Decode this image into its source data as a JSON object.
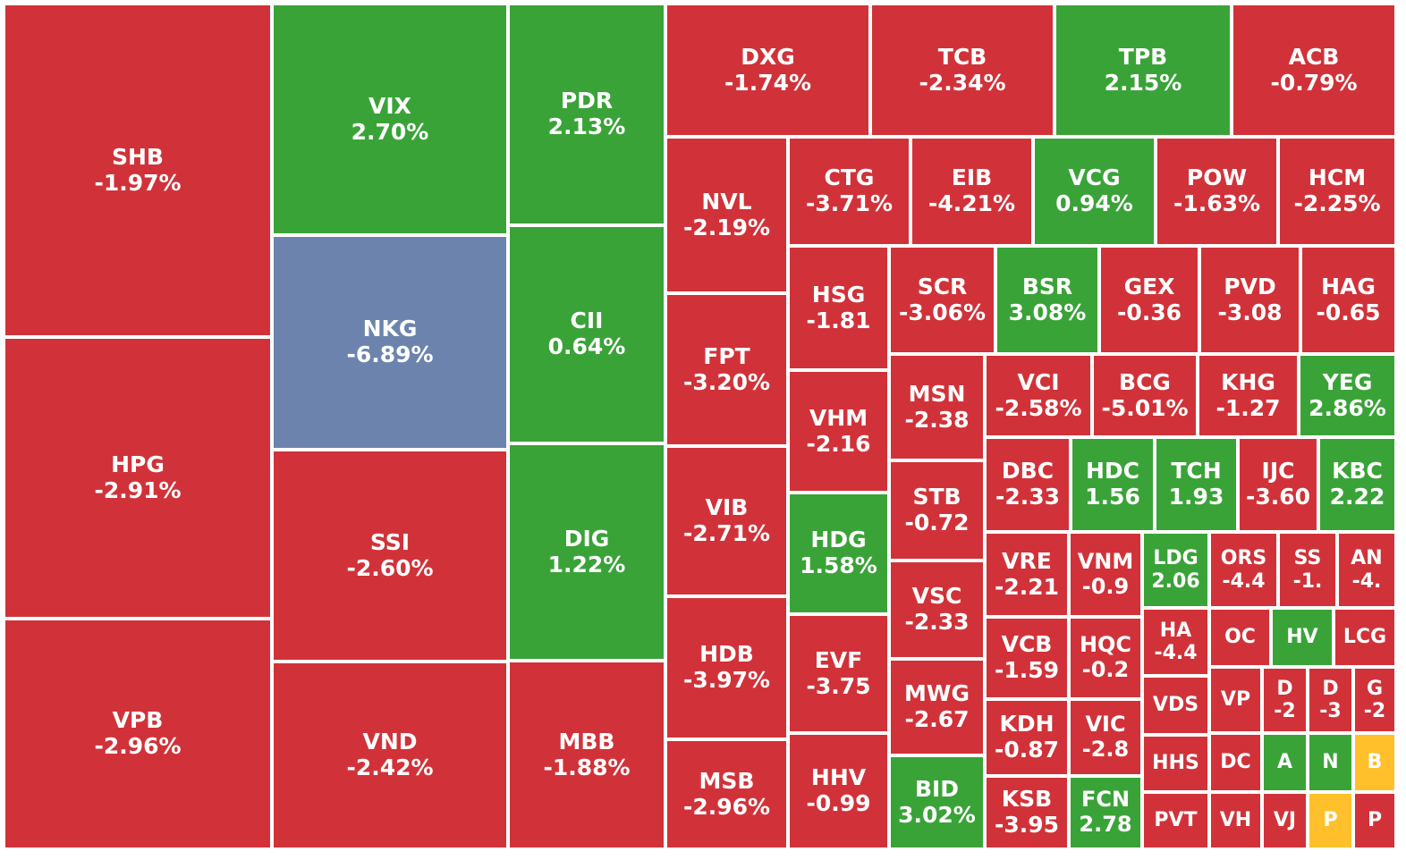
{
  "colors": {
    "down": "#D13239",
    "up": "#3AA338",
    "floor": "#6C84AD",
    "ceiling": "#FFC02B",
    "border": "#FFFFFF",
    "text": "#FFFFFF"
  },
  "chart_data": {
    "type": "heatmap",
    "title": "",
    "tiles": [
      {
        "ticker": "SHB",
        "change": "-1.97%",
        "status": "down"
      },
      {
        "ticker": "HPG",
        "change": "-2.91%",
        "status": "down"
      },
      {
        "ticker": "VPB",
        "change": "-2.96%",
        "status": "down"
      },
      {
        "ticker": "VIX",
        "change": "2.70%",
        "status": "up"
      },
      {
        "ticker": "NKG",
        "change": "-6.89%",
        "status": "floor"
      },
      {
        "ticker": "SSI",
        "change": "-2.60%",
        "status": "down"
      },
      {
        "ticker": "VND",
        "change": "-2.42%",
        "status": "down"
      },
      {
        "ticker": "PDR",
        "change": "2.13%",
        "status": "up"
      },
      {
        "ticker": "CII",
        "change": "0.64%",
        "status": "up"
      },
      {
        "ticker": "DIG",
        "change": "1.22%",
        "status": "up"
      },
      {
        "ticker": "MBB",
        "change": "-1.88%",
        "status": "down"
      },
      {
        "ticker": "DXG",
        "change": "-1.74%",
        "status": "down"
      },
      {
        "ticker": "TCB",
        "change": "-2.34%",
        "status": "down"
      },
      {
        "ticker": "TPB",
        "change": "2.15%",
        "status": "up"
      },
      {
        "ticker": "ACB",
        "change": "-0.79%",
        "status": "down"
      },
      {
        "ticker": "NVL",
        "change": "-2.19%",
        "status": "down"
      },
      {
        "ticker": "FPT",
        "change": "-3.20%",
        "status": "down"
      },
      {
        "ticker": "VIB",
        "change": "-2.71%",
        "status": "down"
      },
      {
        "ticker": "HDB",
        "change": "-3.97%",
        "status": "down"
      },
      {
        "ticker": "MSB",
        "change": "-2.96%",
        "status": "down"
      },
      {
        "ticker": "CTG",
        "change": "-3.71%",
        "status": "down"
      },
      {
        "ticker": "EIB",
        "change": "-4.21%",
        "status": "down"
      },
      {
        "ticker": "VCG",
        "change": "0.94%",
        "status": "up"
      },
      {
        "ticker": "POW",
        "change": "-1.63%",
        "status": "down"
      },
      {
        "ticker": "HCM",
        "change": "-2.25%",
        "status": "down"
      },
      {
        "ticker": "HSG",
        "change": "-1.81",
        "status": "down"
      },
      {
        "ticker": "VHM",
        "change": "-2.16",
        "status": "down"
      },
      {
        "ticker": "HDG",
        "change": "1.58%",
        "status": "up"
      },
      {
        "ticker": "EVF",
        "change": "-3.75",
        "status": "down"
      },
      {
        "ticker": "HHV",
        "change": "-0.99",
        "status": "down"
      },
      {
        "ticker": "SCR",
        "change": "-3.06%",
        "status": "down"
      },
      {
        "ticker": "BSR",
        "change": "3.08%",
        "status": "up"
      },
      {
        "ticker": "GEX",
        "change": "-0.36",
        "status": "down"
      },
      {
        "ticker": "PVD",
        "change": "-3.08",
        "status": "down"
      },
      {
        "ticker": "HAG",
        "change": "-0.65",
        "status": "down"
      },
      {
        "ticker": "MSN",
        "change": "-2.38",
        "status": "down"
      },
      {
        "ticker": "STB",
        "change": "-0.72",
        "status": "down"
      },
      {
        "ticker": "VSC",
        "change": "-2.33",
        "status": "down"
      },
      {
        "ticker": "MWG",
        "change": "-2.67",
        "status": "down"
      },
      {
        "ticker": "BID",
        "change": "3.02%",
        "status": "up"
      },
      {
        "ticker": "VCI",
        "change": "-2.58%",
        "status": "down"
      },
      {
        "ticker": "BCG",
        "change": "-5.01%",
        "status": "down"
      },
      {
        "ticker": "KHG",
        "change": "-1.27",
        "status": "down"
      },
      {
        "ticker": "YEG",
        "change": "2.86%",
        "status": "up"
      },
      {
        "ticker": "DBC",
        "change": "-2.33",
        "status": "down"
      },
      {
        "ticker": "HDC",
        "change": "1.56",
        "status": "up"
      },
      {
        "ticker": "TCH",
        "change": "1.93",
        "status": "up"
      },
      {
        "ticker": "IJC",
        "change": "-3.60",
        "status": "down"
      },
      {
        "ticker": "KBC",
        "change": "2.22",
        "status": "up"
      },
      {
        "ticker": "VRE",
        "change": "-2.21",
        "status": "down"
      },
      {
        "ticker": "VNM",
        "change": "-0.9",
        "status": "down"
      },
      {
        "ticker": "VCB",
        "change": "-1.59",
        "status": "down"
      },
      {
        "ticker": "HQC",
        "change": "-0.2",
        "status": "down"
      },
      {
        "ticker": "KDH",
        "change": "-0.87",
        "status": "down"
      },
      {
        "ticker": "VIC",
        "change": "-2.8",
        "status": "down"
      },
      {
        "ticker": "KSB",
        "change": "-3.95",
        "status": "down"
      },
      {
        "ticker": "FCN",
        "change": "2.78",
        "status": "up"
      },
      {
        "ticker": "LDG",
        "change": "2.06",
        "status": "up"
      },
      {
        "ticker": "ORS",
        "change": "-4.4",
        "status": "down"
      },
      {
        "ticker": "SS",
        "change": "-1.",
        "status": "down"
      },
      {
        "ticker": "AN",
        "change": "-4.",
        "status": "down"
      },
      {
        "ticker": "HA",
        "change": "-4.4",
        "status": "down"
      },
      {
        "ticker": "OC",
        "change": "",
        "status": "down"
      },
      {
        "ticker": "HV",
        "change": "",
        "status": "up"
      },
      {
        "ticker": "LCG",
        "change": "",
        "status": "down"
      },
      {
        "ticker": "VDS",
        "change": "",
        "status": "down"
      },
      {
        "ticker": "VP",
        "change": "",
        "status": "down"
      },
      {
        "ticker": "D",
        "change": "-2",
        "status": "down"
      },
      {
        "ticker": "D",
        "change": "-3",
        "status": "down"
      },
      {
        "ticker": "G",
        "change": "-2",
        "status": "down"
      },
      {
        "ticker": "HHS",
        "change": "",
        "status": "down"
      },
      {
        "ticker": "DC",
        "change": "",
        "status": "down"
      },
      {
        "ticker": "A",
        "change": "",
        "status": "up"
      },
      {
        "ticker": "N",
        "change": "",
        "status": "up"
      },
      {
        "ticker": "B",
        "change": "",
        "status": "ceiling"
      },
      {
        "ticker": "PVT",
        "change": "",
        "status": "down"
      },
      {
        "ticker": "VH",
        "change": "",
        "status": "down"
      },
      {
        "ticker": "VJ",
        "change": "",
        "status": "down"
      },
      {
        "ticker": "P",
        "change": "",
        "status": "ceiling"
      },
      {
        "ticker": "P",
        "change": "",
        "status": "down"
      }
    ]
  }
}
